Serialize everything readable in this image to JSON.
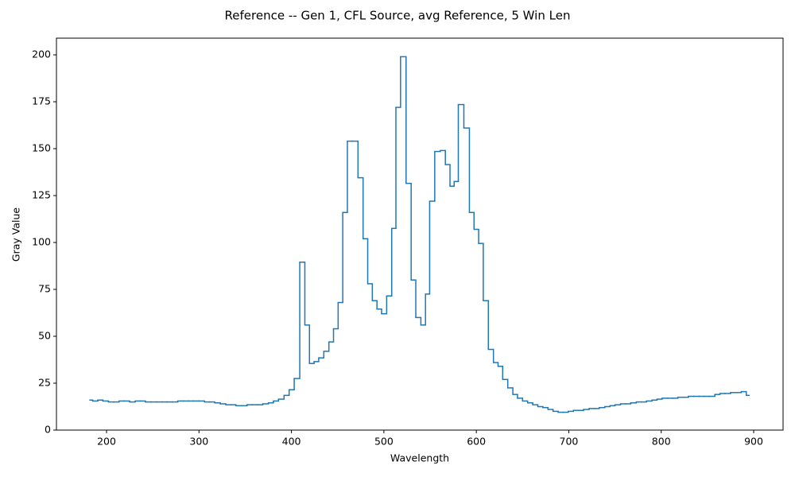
{
  "chart_data": {
    "type": "step",
    "title": "Reference -- Gen 1, CFL Source, avg Reference, 5 Win Len",
    "xlabel": "Wavelength",
    "ylabel": "Gray Value",
    "xlim": [
      145.8,
      931.8
    ],
    "ylim": [
      0,
      208.9
    ],
    "xticks": [
      200,
      300,
      400,
      500,
      600,
      700,
      800,
      900
    ],
    "yticks": [
      0,
      25,
      50,
      75,
      100,
      125,
      150,
      175,
      200
    ],
    "grid": false,
    "series": [
      {
        "color": "#1f77b4",
        "x": [
          182,
          188,
          193,
          199,
          205,
          211,
          216,
          222,
          228,
          234,
          239,
          245,
          251,
          257,
          263,
          268,
          274,
          280,
          286,
          291,
          297,
          303,
          309,
          314,
          320,
          326,
          332,
          337,
          343,
          349,
          355,
          360,
          366,
          372,
          378,
          383,
          389,
          395,
          400,
          406,
          412,
          417,
          422,
          427,
          432,
          438,
          443,
          448,
          453,
          458,
          463,
          469,
          475,
          480,
          485,
          490,
          495,
          500,
          506,
          511,
          515,
          521,
          527,
          532,
          537,
          543,
          547,
          552,
          558,
          564,
          569,
          574,
          578,
          583,
          590,
          595,
          600,
          605,
          610,
          616,
          621,
          626,
          631,
          637,
          642,
          647,
          653,
          658,
          664,
          669,
          675,
          680,
          686,
          691,
          697,
          702,
          708,
          713,
          719,
          725,
          730,
          736,
          742,
          747,
          753,
          759,
          764,
          770,
          776,
          781,
          787,
          793,
          798,
          804,
          810,
          815,
          821,
          827,
          832,
          838,
          844,
          849,
          855,
          861,
          866,
          872,
          878,
          884,
          889,
          895
        ],
        "values": [
          16,
          15.5,
          16,
          15.5,
          15,
          15,
          15.5,
          15.5,
          15,
          15.5,
          15.5,
          15,
          15,
          15,
          15,
          15,
          15,
          15.5,
          15.5,
          15.5,
          15.5,
          15.5,
          15,
          15,
          14.5,
          14,
          13.5,
          13.5,
          13,
          13,
          13.5,
          13.5,
          13.5,
          14,
          14.5,
          15.5,
          16.5,
          18.5,
          21.5,
          27.5,
          89.5,
          56,
          35.5,
          36.5,
          38.5,
          42,
          47,
          54,
          68,
          116,
          154,
          154,
          134.5,
          102,
          78,
          69,
          64.5,
          62,
          71.5,
          107.5,
          172,
          199,
          131.5,
          80,
          60,
          56,
          72.5,
          122,
          148.5,
          149,
          141.5,
          130,
          132.5,
          173.5,
          161,
          116,
          107,
          99.5,
          69,
          43,
          36,
          34,
          27,
          22.5,
          19,
          17,
          15.5,
          14.5,
          13.5,
          12.5,
          12,
          11,
          10,
          9.5,
          9.5,
          10,
          10.5,
          10.5,
          11,
          11.5,
          11.5,
          12,
          12.5,
          13,
          13.5,
          14,
          14,
          14.5,
          15,
          15,
          15.5,
          16,
          16.5,
          17,
          17,
          17,
          17.5,
          17.5,
          18,
          18,
          18,
          18,
          18,
          19,
          19.5,
          19.5,
          20,
          20,
          20.5,
          18.5
        ]
      }
    ]
  }
}
